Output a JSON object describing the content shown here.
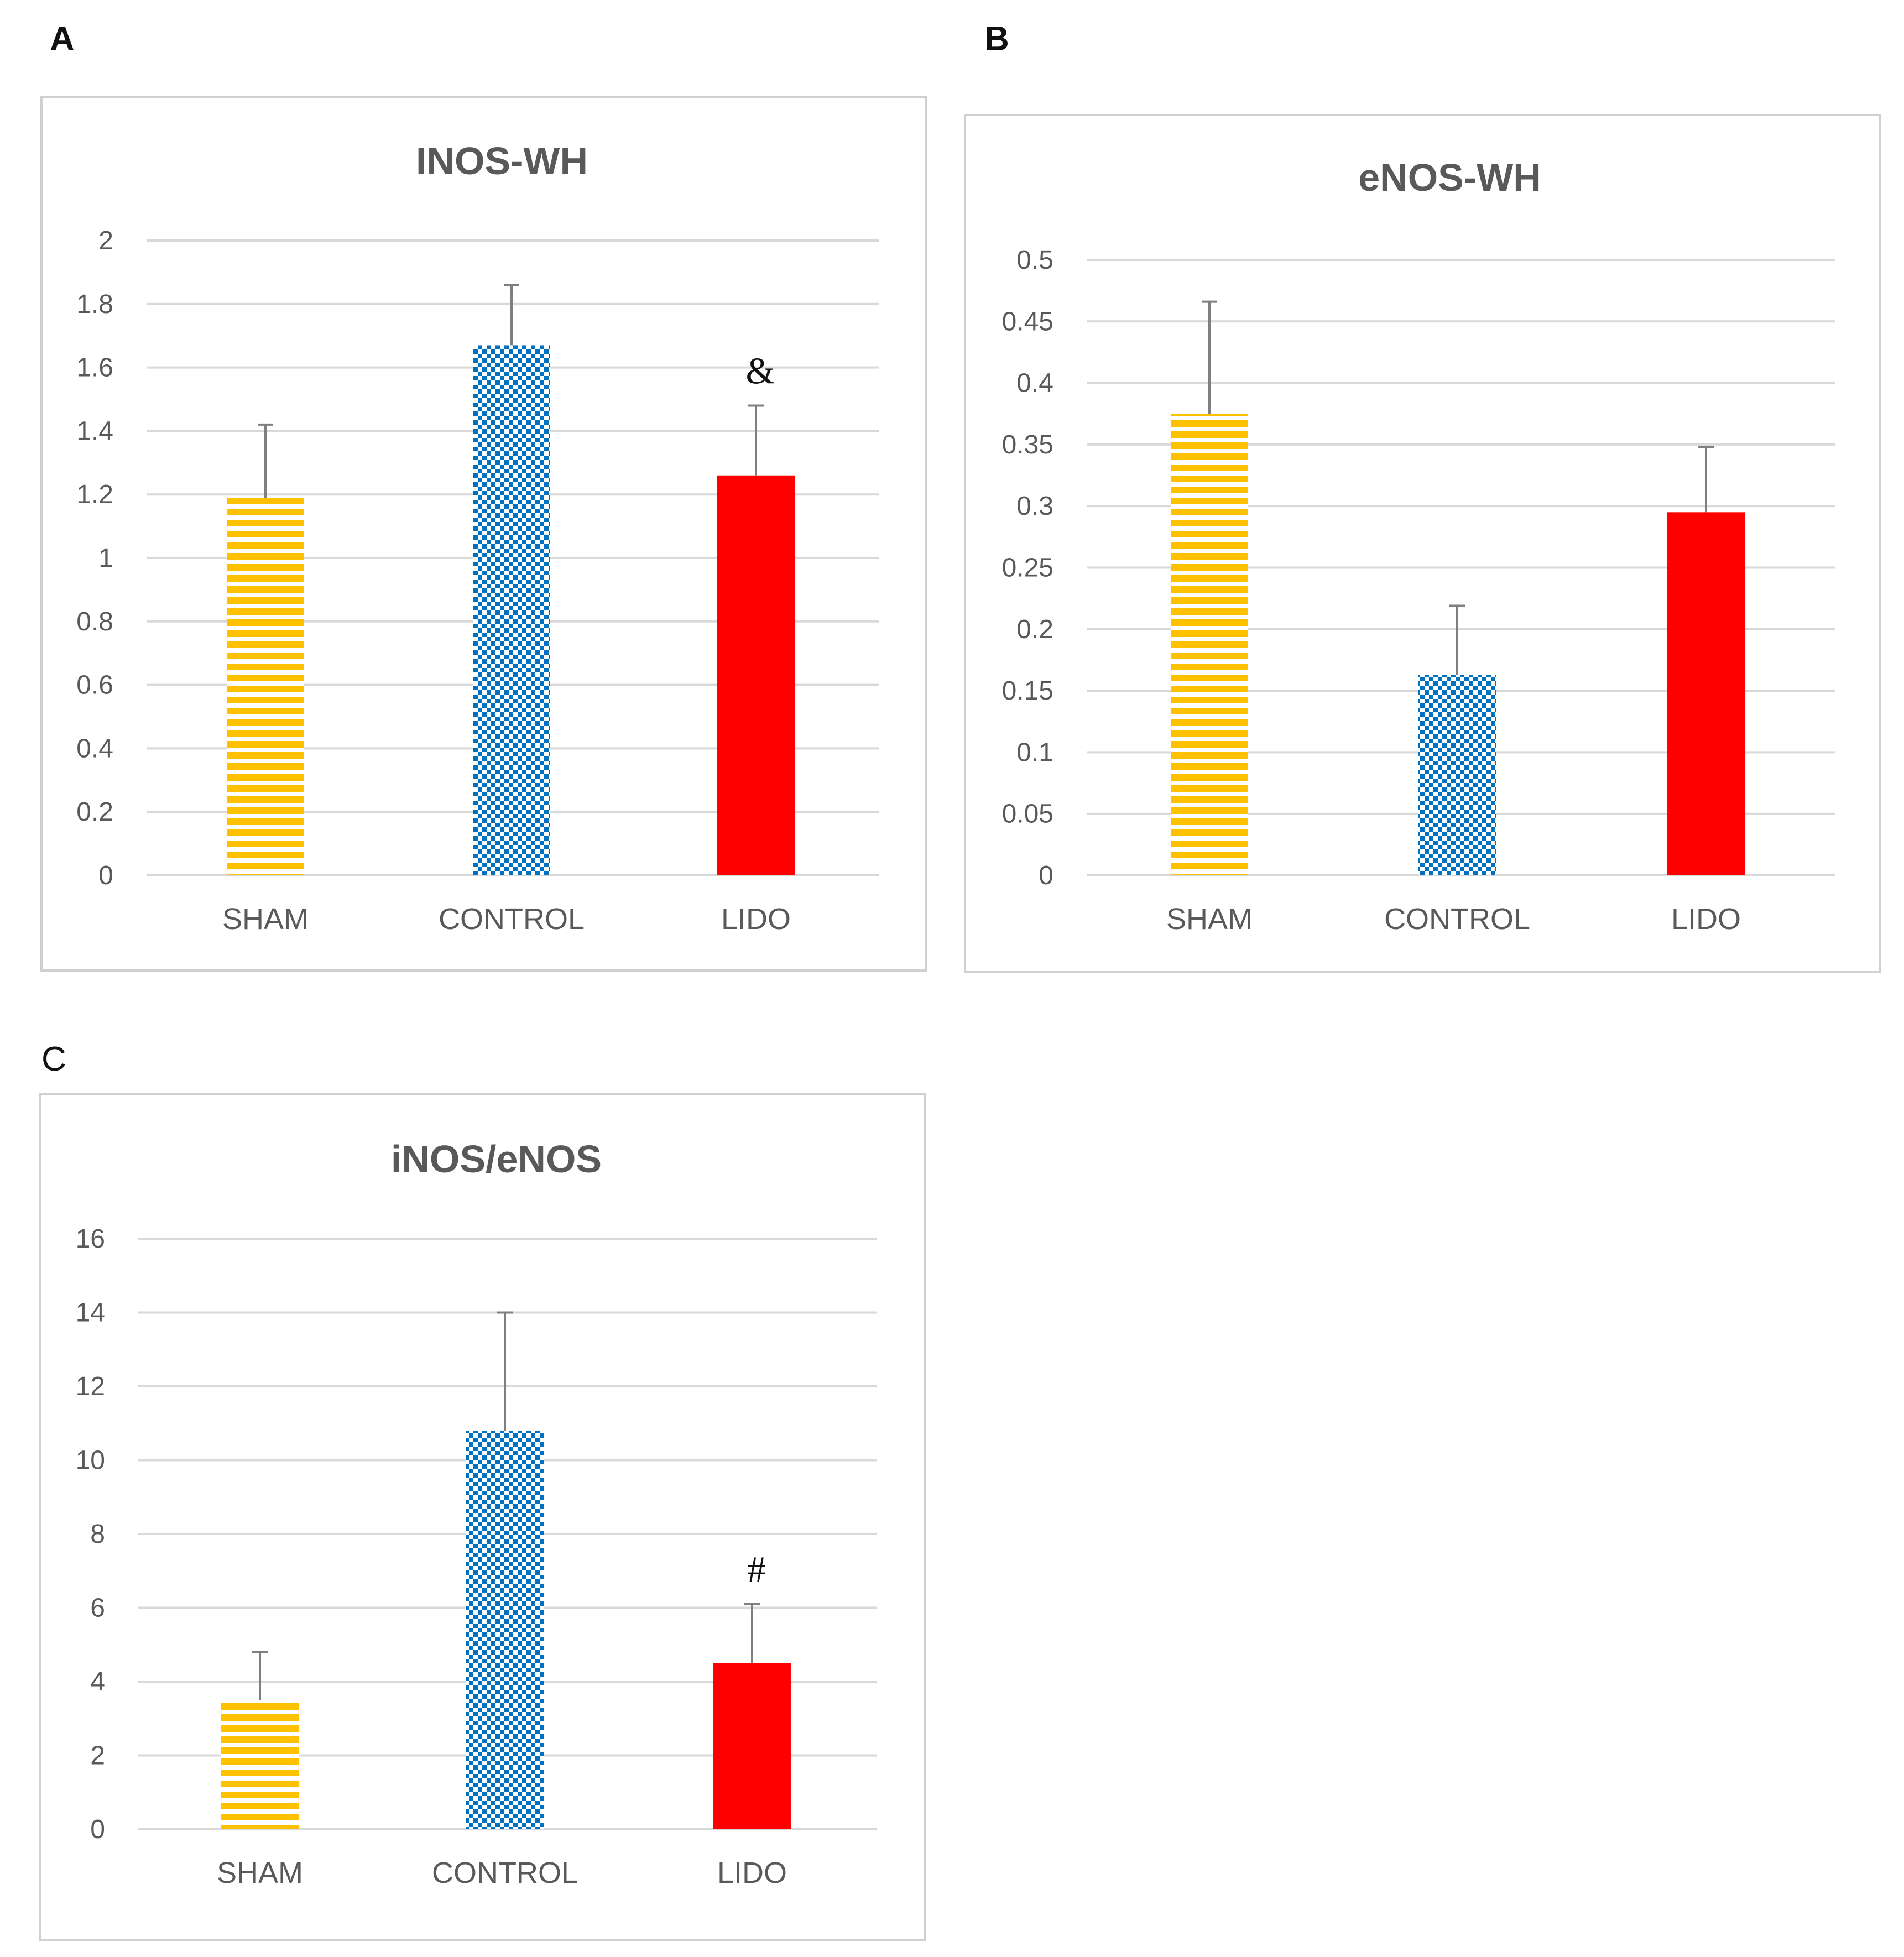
{
  "panels": [
    {
      "letter": "A",
      "bold": true
    },
    {
      "letter": "B",
      "bold": true
    },
    {
      "letter": "C",
      "bold": false
    }
  ],
  "colors": {
    "sham": "#ffc000",
    "control": "#0070c0",
    "lido": "#ff0000",
    "frame": "#d0d0d0",
    "grid": "#d9d9d9",
    "text": "#595959",
    "error_bar": "#7f7f7f"
  },
  "chart_data": [
    {
      "type": "bar",
      "title": "INOS-WH",
      "categories": [
        "SHAM",
        "CONTROL",
        "LIDO"
      ],
      "values": [
        1.19,
        1.67,
        1.26
      ],
      "errors": [
        0.23,
        0.19,
        0.22
      ],
      "patterns": [
        "stripes",
        "checker",
        "solid"
      ],
      "ylim": [
        0,
        2
      ],
      "yticks": [
        0,
        0.2,
        0.4,
        0.6,
        0.8,
        1,
        1.2,
        1.4,
        1.6,
        1.8,
        2
      ],
      "ytick_labels": [
        "0",
        "0.2",
        "0.4",
        "0.6",
        "0.8",
        "1",
        "1.2",
        "1.4",
        "1.6",
        "1.8",
        "2"
      ],
      "annotations": [
        {
          "category": "LIDO",
          "text": "&"
        }
      ],
      "grid": true,
      "xlabel": "",
      "ylabel": ""
    },
    {
      "type": "bar",
      "title": "eNOS-WH",
      "categories": [
        "SHAM",
        "CONTROL",
        "LIDO"
      ],
      "values": [
        0.375,
        0.163,
        0.295
      ],
      "errors": [
        0.091,
        0.056,
        0.053
      ],
      "patterns": [
        "stripes",
        "checker",
        "solid"
      ],
      "ylim": [
        0,
        0.5
      ],
      "yticks": [
        0,
        0.05,
        0.1,
        0.15,
        0.2,
        0.25,
        0.3,
        0.35,
        0.4,
        0.45,
        0.5
      ],
      "ytick_labels": [
        "0",
        "0.05",
        "0.1",
        "0.15",
        "0.2",
        "0.25",
        "0.3",
        "0.35",
        "0.4",
        "0.45",
        "0.5"
      ],
      "annotations": [],
      "grid": true,
      "xlabel": "",
      "ylabel": ""
    },
    {
      "type": "bar",
      "title": "iNOS/eNOS",
      "categories": [
        "SHAM",
        "CONTROL",
        "LIDO"
      ],
      "values": [
        3.5,
        10.8,
        4.5
      ],
      "errors": [
        1.3,
        3.2,
        1.6
      ],
      "patterns": [
        "stripes",
        "checker",
        "solid"
      ],
      "ylim": [
        0,
        16
      ],
      "yticks": [
        0,
        2,
        4,
        6,
        8,
        10,
        12,
        14,
        16
      ],
      "ytick_labels": [
        "0",
        "2",
        "4",
        "6",
        "8",
        "10",
        "12",
        "14",
        "16"
      ],
      "annotations": [
        {
          "category": "LIDO",
          "text": "#"
        }
      ],
      "grid": true,
      "xlabel": "",
      "ylabel": ""
    }
  ]
}
